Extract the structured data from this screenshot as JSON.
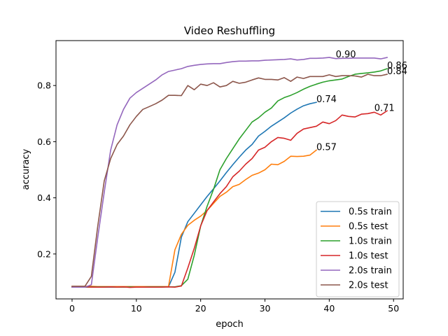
{
  "chart_data": {
    "type": "line",
    "title": "Video Reshuffling",
    "xlabel": "epoch",
    "ylabel": "accuracy",
    "xlim": [
      -2.5,
      51.5
    ],
    "ylim": [
      0.04,
      0.96
    ],
    "xticks": [
      0,
      10,
      20,
      30,
      40,
      50
    ],
    "yticks": [
      0.2,
      0.4,
      0.6,
      0.8
    ],
    "ytick_labels": [
      "0.2",
      "0.4",
      "0.6",
      "0.8"
    ],
    "grid": false,
    "legend_position": "lower-right",
    "series": [
      {
        "name": "0.5s train",
        "color": "#1f77b4",
        "x": [
          0,
          1,
          2,
          3,
          4,
          5,
          6,
          7,
          8,
          9,
          10,
          11,
          12,
          13,
          14,
          15,
          16,
          17,
          18,
          19,
          20,
          21,
          22,
          23,
          24,
          25,
          26,
          27,
          28,
          29,
          30,
          31,
          32,
          33,
          34,
          35,
          36,
          37,
          38
        ],
        "y": [
          0.083,
          0.083,
          0.082,
          0.082,
          0.082,
          0.082,
          0.082,
          0.082,
          0.082,
          0.082,
          0.082,
          0.083,
          0.082,
          0.083,
          0.083,
          0.083,
          0.135,
          0.26,
          0.315,
          0.345,
          0.375,
          0.405,
          0.432,
          0.46,
          0.49,
          0.518,
          0.545,
          0.57,
          0.59,
          0.62,
          0.637,
          0.655,
          0.67,
          0.685,
          0.702,
          0.716,
          0.728,
          0.735,
          0.74
        ]
      },
      {
        "name": "0.5s test",
        "color": "#ff7f0e",
        "x": [
          0,
          1,
          2,
          3,
          4,
          5,
          6,
          7,
          8,
          9,
          10,
          11,
          12,
          13,
          14,
          15,
          16,
          17,
          18,
          19,
          20,
          21,
          22,
          23,
          24,
          25,
          26,
          27,
          28,
          29,
          30,
          31,
          32,
          33,
          34,
          35,
          36,
          37,
          38
        ],
        "y": [
          0.085,
          0.085,
          0.085,
          0.085,
          0.084,
          0.084,
          0.084,
          0.084,
          0.084,
          0.084,
          0.084,
          0.084,
          0.084,
          0.084,
          0.084,
          0.084,
          0.215,
          0.27,
          0.302,
          0.32,
          0.335,
          0.355,
          0.38,
          0.405,
          0.42,
          0.44,
          0.448,
          0.465,
          0.48,
          0.488,
          0.5,
          0.52,
          0.518,
          0.53,
          0.548,
          0.547,
          0.548,
          0.552,
          0.57
        ]
      },
      {
        "name": "1.0s train",
        "color": "#2ca02c",
        "x": [
          0,
          1,
          2,
          3,
          4,
          5,
          6,
          7,
          8,
          9,
          10,
          11,
          12,
          13,
          14,
          15,
          16,
          17,
          18,
          19,
          20,
          21,
          22,
          23,
          24,
          25,
          26,
          27,
          28,
          29,
          30,
          31,
          32,
          33,
          34,
          35,
          36,
          37,
          38,
          39,
          40,
          41,
          42,
          43,
          44,
          45,
          46,
          47,
          48,
          49
        ],
        "y": [
          0.082,
          0.082,
          0.082,
          0.083,
          0.083,
          0.083,
          0.083,
          0.082,
          0.082,
          0.083,
          0.082,
          0.082,
          0.083,
          0.083,
          0.083,
          0.083,
          0.083,
          0.087,
          0.11,
          0.195,
          0.3,
          0.37,
          0.43,
          0.5,
          0.54,
          0.575,
          0.61,
          0.64,
          0.67,
          0.685,
          0.705,
          0.72,
          0.745,
          0.757,
          0.765,
          0.775,
          0.787,
          0.797,
          0.805,
          0.812,
          0.817,
          0.82,
          0.823,
          0.832,
          0.84,
          0.843,
          0.845,
          0.848,
          0.852,
          0.86
        ]
      },
      {
        "name": "1.0s test",
        "color": "#d62728",
        "x": [
          0,
          1,
          2,
          3,
          4,
          5,
          6,
          7,
          8,
          9,
          10,
          11,
          12,
          13,
          14,
          15,
          16,
          17,
          18,
          19,
          20,
          21,
          22,
          23,
          24,
          25,
          26,
          27,
          28,
          29,
          30,
          31,
          32,
          33,
          34,
          35,
          36,
          37,
          38,
          39,
          40,
          41,
          42,
          43,
          44,
          45,
          46,
          47,
          48,
          49
        ],
        "y": [
          0.083,
          0.083,
          0.083,
          0.082,
          0.082,
          0.082,
          0.083,
          0.082,
          0.083,
          0.081,
          0.082,
          0.082,
          0.082,
          0.082,
          0.082,
          0.083,
          0.082,
          0.086,
          0.15,
          0.22,
          0.3,
          0.355,
          0.385,
          0.415,
          0.44,
          0.475,
          0.495,
          0.52,
          0.54,
          0.57,
          0.58,
          0.6,
          0.615,
          0.612,
          0.605,
          0.63,
          0.645,
          0.65,
          0.655,
          0.67,
          0.664,
          0.675,
          0.695,
          0.69,
          0.688,
          0.698,
          0.7,
          0.705,
          0.695,
          0.71
        ]
      },
      {
        "name": "2.0s train",
        "color": "#9467bd",
        "x": [
          0,
          1,
          2,
          3,
          4,
          5,
          6,
          7,
          8,
          9,
          10,
          11,
          12,
          13,
          14,
          15,
          16,
          17,
          18,
          19,
          20,
          21,
          22,
          23,
          24,
          25,
          26,
          27,
          28,
          29,
          30,
          31,
          32,
          33,
          34,
          35,
          36,
          37,
          38,
          39,
          40,
          41,
          42,
          43,
          44,
          45,
          46,
          47,
          48,
          49
        ],
        "y": [
          0.082,
          0.082,
          0.082,
          0.09,
          0.26,
          0.42,
          0.57,
          0.66,
          0.715,
          0.755,
          0.775,
          0.79,
          0.805,
          0.82,
          0.838,
          0.85,
          0.855,
          0.86,
          0.868,
          0.872,
          0.875,
          0.877,
          0.878,
          0.878,
          0.882,
          0.885,
          0.887,
          0.887,
          0.888,
          0.888,
          0.89,
          0.891,
          0.892,
          0.893,
          0.895,
          0.891,
          0.893,
          0.897,
          0.897,
          0.898,
          0.9,
          0.896,
          0.897,
          0.897,
          0.898,
          0.898,
          0.898,
          0.898,
          0.895,
          0.9
        ]
      },
      {
        "name": "2.0s test",
        "color": "#8c564b",
        "x": [
          0,
          1,
          2,
          3,
          4,
          5,
          6,
          7,
          8,
          9,
          10,
          11,
          12,
          13,
          14,
          15,
          16,
          17,
          18,
          19,
          20,
          21,
          22,
          23,
          24,
          25,
          26,
          27,
          28,
          29,
          30,
          31,
          32,
          33,
          34,
          35,
          36,
          37,
          38,
          39,
          40,
          41,
          42,
          43,
          44,
          45,
          46,
          47,
          48,
          49
        ],
        "y": [
          0.085,
          0.085,
          0.085,
          0.12,
          0.3,
          0.46,
          0.54,
          0.59,
          0.62,
          0.66,
          0.69,
          0.715,
          0.725,
          0.735,
          0.748,
          0.765,
          0.765,
          0.764,
          0.8,
          0.785,
          0.805,
          0.8,
          0.81,
          0.795,
          0.8,
          0.815,
          0.808,
          0.812,
          0.82,
          0.827,
          0.822,
          0.822,
          0.82,
          0.828,
          0.815,
          0.83,
          0.825,
          0.832,
          0.832,
          0.832,
          0.838,
          0.832,
          0.835,
          0.835,
          0.834,
          0.83,
          0.84,
          0.835,
          0.835,
          0.84
        ]
      }
    ],
    "annotations": [
      {
        "text": "0.74",
        "x": 38,
        "y": 0.74
      },
      {
        "text": "0.57",
        "x": 38,
        "y": 0.57
      },
      {
        "text": "0.86",
        "x": 49,
        "y": 0.86
      },
      {
        "text": "0.71",
        "x": 47,
        "y": 0.71
      },
      {
        "text": "0.90",
        "x": 41,
        "y": 0.9
      },
      {
        "text": "0.84",
        "x": 49,
        "y": 0.84
      }
    ]
  }
}
